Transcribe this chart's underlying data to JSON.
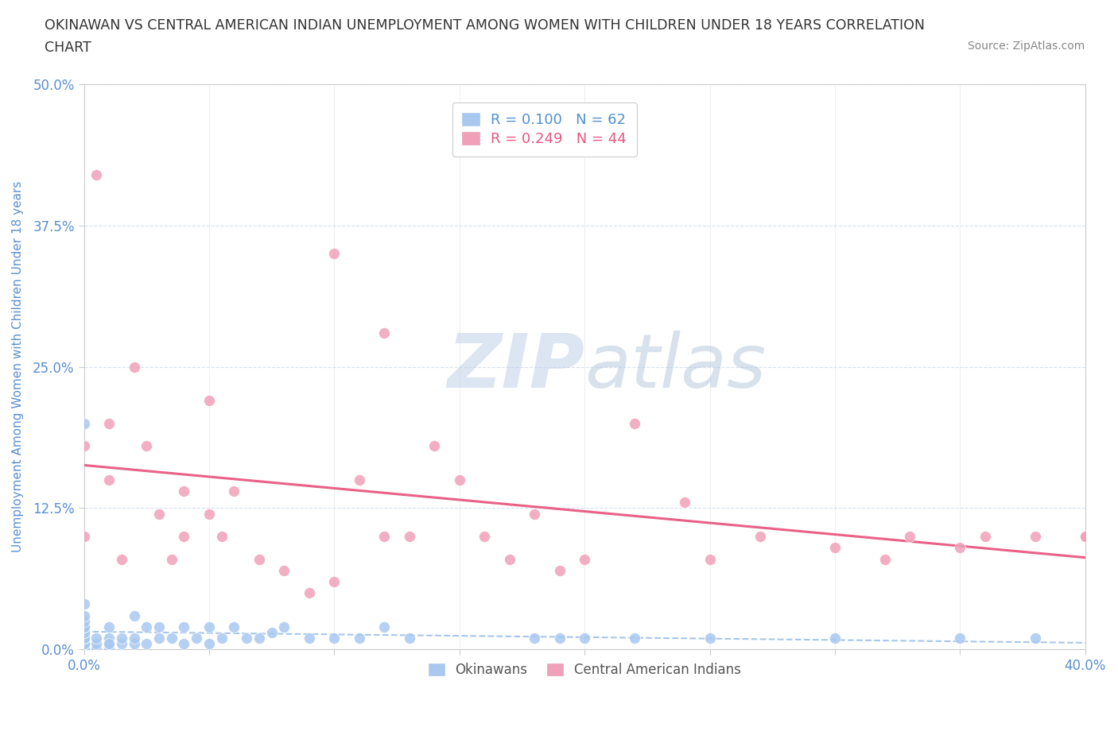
{
  "title_line1": "OKINAWAN VS CENTRAL AMERICAN INDIAN UNEMPLOYMENT AMONG WOMEN WITH CHILDREN UNDER 18 YEARS CORRELATION",
  "title_line2": "CHART",
  "source": "Source: ZipAtlas.com",
  "ylabel": "Unemployment Among Women with Children Under 18 years",
  "xlim": [
    0,
    0.4
  ],
  "ylim": [
    0,
    0.5
  ],
  "yticks": [
    0.0,
    0.125,
    0.25,
    0.375,
    0.5
  ],
  "ytick_labels": [
    "0.0%",
    "12.5%",
    "25.0%",
    "37.5%",
    "50.0%"
  ],
  "xtick_labels_show": [
    "0.0%",
    "40.0%"
  ],
  "okinawan_R": 0.1,
  "okinawan_N": 62,
  "central_american_R": 0.249,
  "central_american_N": 44,
  "okinawan_color": "#a8c8f0",
  "central_american_color": "#f0a0b8",
  "okinawan_trend_color": "#90b8e8",
  "central_american_trend_color": "#e85880",
  "legend_ok_color": "#5090d0",
  "legend_ca_color": "#e85880",
  "tick_color": "#5a8fd0",
  "grid_color": "#d0ddf0",
  "watermark_color_zip": "#c8d8f0",
  "watermark_color_atlas": "#a0b8d8",
  "background_color": "#ffffff",
  "okinawan_x": [
    0.0,
    0.0,
    0.0,
    0.0,
    0.0,
    0.0,
    0.0,
    0.0,
    0.0,
    0.0,
    0.0,
    0.0,
    0.0,
    0.0,
    0.0,
    0.0,
    0.0,
    0.0,
    0.0,
    0.0,
    0.005,
    0.005,
    0.005,
    0.01,
    0.01,
    0.01,
    0.01,
    0.01,
    0.015,
    0.015,
    0.02,
    0.02,
    0.02,
    0.025,
    0.025,
    0.03,
    0.03,
    0.035,
    0.04,
    0.04,
    0.045,
    0.05,
    0.05,
    0.055,
    0.06,
    0.065,
    0.07,
    0.075,
    0.08,
    0.09,
    0.1,
    0.11,
    0.12,
    0.13,
    0.18,
    0.19,
    0.2,
    0.22,
    0.25,
    0.3,
    0.35,
    0.38
  ],
  "okinawan_y": [
    0.0,
    0.0,
    0.0,
    0.0,
    0.0,
    0.005,
    0.005,
    0.005,
    0.01,
    0.01,
    0.01,
    0.015,
    0.015,
    0.02,
    0.02,
    0.02,
    0.025,
    0.03,
    0.04,
    0.2,
    0.0,
    0.005,
    0.01,
    0.0,
    0.005,
    0.01,
    0.02,
    0.005,
    0.005,
    0.01,
    0.005,
    0.01,
    0.03,
    0.005,
    0.02,
    0.01,
    0.02,
    0.01,
    0.005,
    0.02,
    0.01,
    0.005,
    0.02,
    0.01,
    0.02,
    0.01,
    0.01,
    0.015,
    0.02,
    0.01,
    0.01,
    0.01,
    0.02,
    0.01,
    0.01,
    0.01,
    0.01,
    0.01,
    0.01,
    0.01,
    0.01,
    0.01
  ],
  "central_american_x": [
    0.0,
    0.0,
    0.005,
    0.01,
    0.01,
    0.015,
    0.02,
    0.025,
    0.03,
    0.035,
    0.04,
    0.04,
    0.05,
    0.05,
    0.055,
    0.06,
    0.07,
    0.08,
    0.09,
    0.1,
    0.1,
    0.11,
    0.12,
    0.12,
    0.13,
    0.14,
    0.15,
    0.16,
    0.17,
    0.18,
    0.19,
    0.2,
    0.22,
    0.24,
    0.25,
    0.27,
    0.3,
    0.32,
    0.33,
    0.35,
    0.36,
    0.38,
    0.4,
    0.4
  ],
  "central_american_y": [
    0.1,
    0.18,
    0.42,
    0.15,
    0.2,
    0.08,
    0.25,
    0.18,
    0.12,
    0.08,
    0.1,
    0.14,
    0.12,
    0.22,
    0.1,
    0.14,
    0.08,
    0.07,
    0.05,
    0.06,
    0.35,
    0.15,
    0.1,
    0.28,
    0.1,
    0.18,
    0.15,
    0.1,
    0.08,
    0.12,
    0.07,
    0.08,
    0.2,
    0.13,
    0.08,
    0.1,
    0.09,
    0.08,
    0.1,
    0.09,
    0.1,
    0.1,
    0.1,
    0.1
  ]
}
